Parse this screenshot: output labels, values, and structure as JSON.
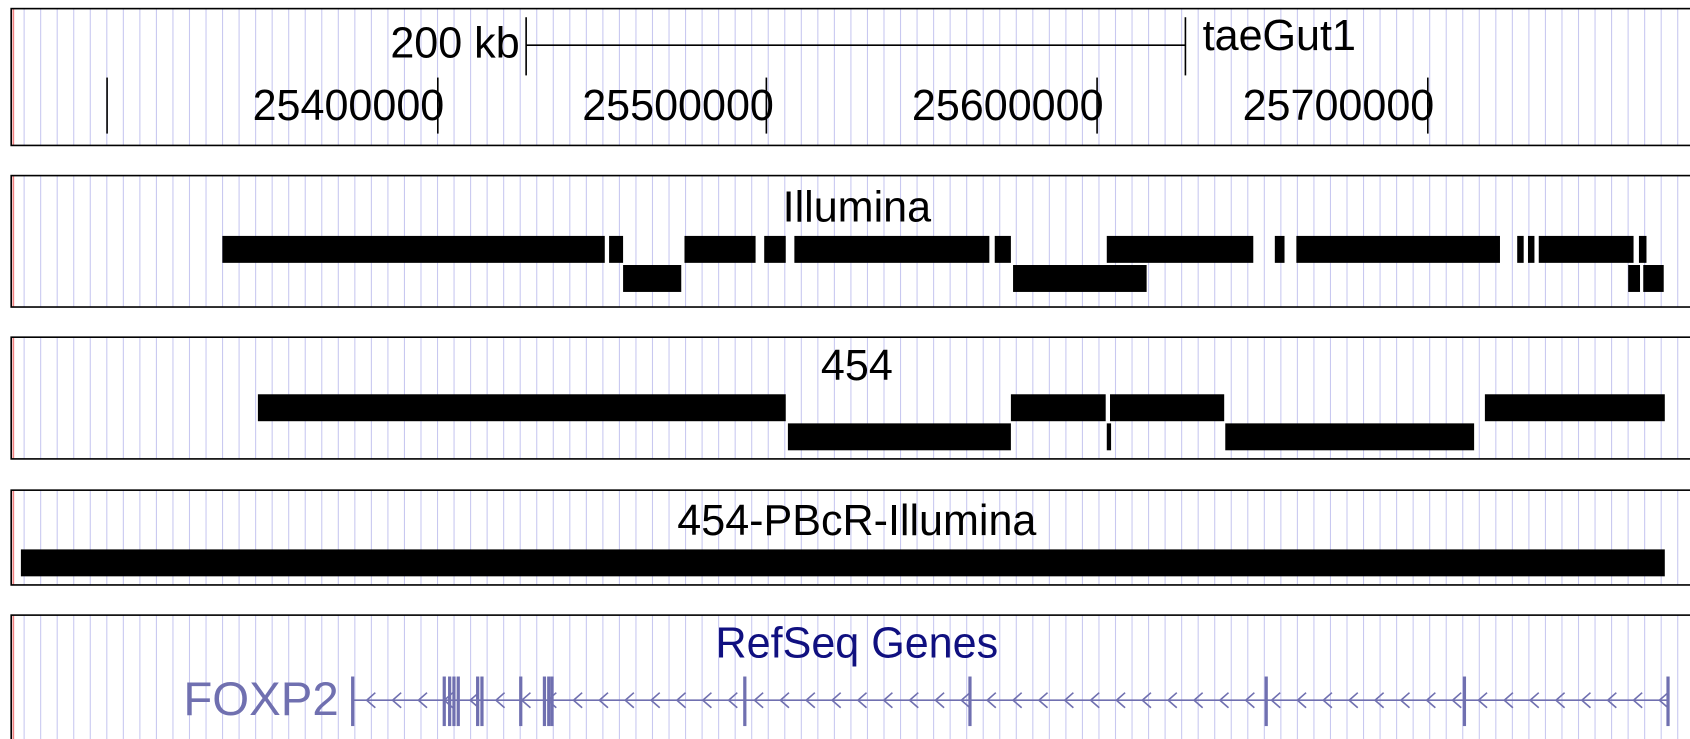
{
  "ruler": {
    "scale_label": "200 kb",
    "assembly": "taeGut1",
    "positions": [
      "25400000",
      "25500000",
      "25600000",
      "25700000"
    ]
  },
  "tracks": [
    {
      "title": "Illumina"
    },
    {
      "title": "454"
    },
    {
      "title": "454-PBcR-Illumina"
    },
    {
      "title": "RefSeq Genes",
      "gene": "FOXP2"
    }
  ]
}
